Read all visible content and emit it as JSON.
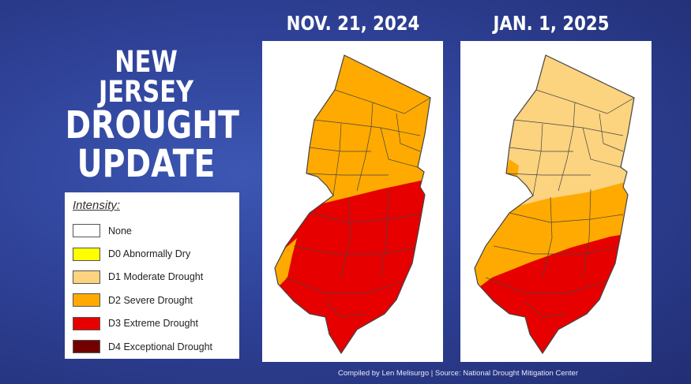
{
  "title": {
    "line1": "NEW JERSEY",
    "line2": "DROUGHT",
    "line3": "UPDATE"
  },
  "legend": {
    "heading": "Intensity:",
    "items": [
      {
        "label": "None",
        "color": "#ffffff"
      },
      {
        "label": "D0 Abnormally Dry",
        "color": "#ffff00"
      },
      {
        "label": "D1 Moderate Drought",
        "color": "#fcd37f"
      },
      {
        "label": "D2 Severe Drought",
        "color": "#ffaa00"
      },
      {
        "label": "D3 Extreme Drought",
        "color": "#e60000"
      },
      {
        "label": "D4 Exceptional Drought",
        "color": "#730000"
      }
    ]
  },
  "maps": [
    {
      "date": "NOV. 21, 2024",
      "north_category": "D2 Severe Drought",
      "south_category": "D3 Extreme Drought"
    },
    {
      "date": "JAN. 1, 2025",
      "north_category": "D1 Moderate Drought",
      "middle_category": "D2 Severe Drought",
      "south_category": "D3 Extreme Drought"
    }
  ],
  "colors": {
    "d1": "#fcd37f",
    "d2": "#ffaa00",
    "d3": "#e60000",
    "outline": "#444444"
  },
  "credit": "Compiled by Len Melisurgo   |   Source: National Drought Mitigation Center"
}
